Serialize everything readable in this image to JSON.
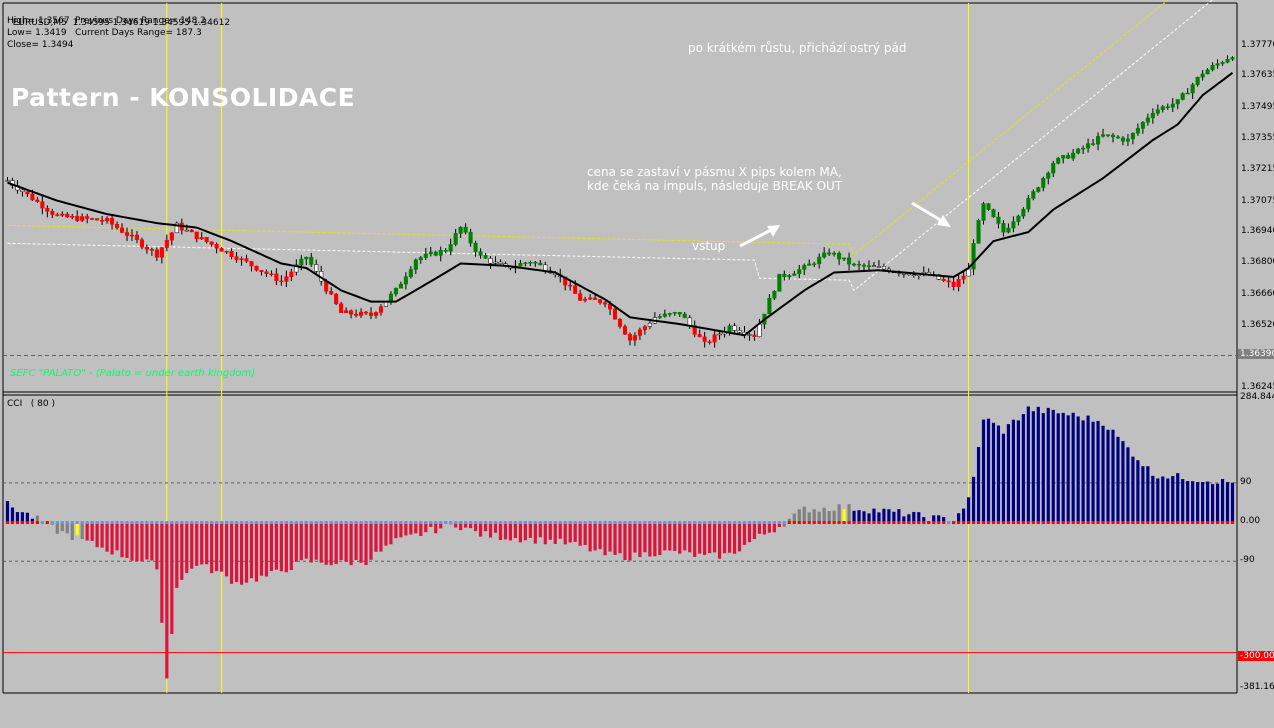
{
  "window": {
    "symbol": "EURUSD,M5",
    "ohlc": "1.34595 1.34619 1.34595 1.34612",
    "high_line": "High= 1.3567",
    "low_line": "Low= 1.3419",
    "close_line": "Close= 1.3494",
    "prev_range": "Previous Days Range= 148.2",
    "curr_range": "Current Days Range= 187.3"
  },
  "annotations": {
    "pattern_title": "Pattern - KONSOLIDACE",
    "consolidation_note": "cena se zastaví v pásmu X pips kolem MA,\nkde čeká na impuls, následuje BREAK OUT",
    "drop_note": "po krátkém růstu, přichází ostrý pád",
    "entry_label": "vstup",
    "credit": "SEFC \"PALATO\" - (Palato = under earth kingdom)"
  },
  "cci_panel": {
    "label": "CCI   ( 80 )",
    "levels": [
      90,
      0,
      -90,
      -300
    ],
    "tick_labels": [
      "284.844",
      "90",
      "0.00",
      "-90",
      "-381.169"
    ],
    "tag_300": "-300.00"
  },
  "colors": {
    "background": "#c0c0c0",
    "bull": "#008000",
    "bear": "#ff0000",
    "neutral": "#ffffff",
    "ma": "#000000",
    "cci_pos": "#000080",
    "cci_neg": "#dc143c",
    "cci_flat": "#808080",
    "signal": "#ffff00",
    "vline": "#ffff00"
  },
  "chart_data": {
    "type": "candlestick",
    "symbol": "EURUSD",
    "timeframe": "M5",
    "ylim": [
      1.36245,
      1.3793
    ],
    "y_ticks": [
      1.3777,
      1.37635,
      1.37495,
      1.37355,
      1.37215,
      1.37075,
      1.3694,
      1.368,
      1.3666,
      1.3652,
      1.3638,
      1.36245
    ],
    "y_tick_labels": [
      "1.37770",
      "1.37635",
      "1.37495",
      "1.37355",
      "1.37215",
      "1.37075",
      "1.36940",
      "1.36800",
      "1.36660",
      "1.36520",
      "1.36380",
      "1.36245"
    ],
    "current_price_line": 1.3639,
    "vertical_marker_bars": [
      32,
      43,
      193
    ],
    "close_path": [
      [
        0,
        1.3717
      ],
      [
        10,
        1.3701
      ],
      [
        20,
        1.3699
      ],
      [
        30,
        1.3684
      ],
      [
        34,
        1.3697
      ],
      [
        38,
        1.3692
      ],
      [
        45,
        1.3684
      ],
      [
        55,
        1.3672
      ],
      [
        60,
        1.3683
      ],
      [
        67,
        1.3658
      ],
      [
        73,
        1.3657
      ],
      [
        78,
        1.3668
      ],
      [
        82,
        1.3682
      ],
      [
        88,
        1.3686
      ],
      [
        91,
        1.3696
      ],
      [
        95,
        1.3683
      ],
      [
        100,
        1.3678
      ],
      [
        105,
        1.3681
      ],
      [
        110,
        1.3676
      ],
      [
        115,
        1.3664
      ],
      [
        120,
        1.3663
      ],
      [
        125,
        1.3646
      ],
      [
        130,
        1.3656
      ],
      [
        135,
        1.3658
      ],
      [
        140,
        1.3644
      ],
      [
        145,
        1.3652
      ],
      [
        150,
        1.3648
      ],
      [
        155,
        1.3674
      ],
      [
        160,
        1.3678
      ],
      [
        165,
        1.3685
      ],
      [
        170,
        1.3679
      ],
      [
        175,
        1.3678
      ],
      [
        180,
        1.3676
      ],
      [
        185,
        1.3675
      ],
      [
        190,
        1.367
      ],
      [
        193,
        1.3677
      ],
      [
        194,
        1.369
      ],
      [
        196,
        1.3706
      ],
      [
        200,
        1.3694
      ],
      [
        205,
        1.3708
      ],
      [
        210,
        1.3725
      ],
      [
        215,
        1.373
      ],
      [
        220,
        1.3737
      ],
      [
        225,
        1.3735
      ],
      [
        230,
        1.3748
      ],
      [
        235,
        1.3752
      ],
      [
        240,
        1.3765
      ],
      [
        246,
        1.3773
      ]
    ],
    "ma_path": [
      [
        0,
        1.3716
      ],
      [
        10,
        1.3708
      ],
      [
        20,
        1.3702
      ],
      [
        30,
        1.3698
      ],
      [
        38,
        1.3696
      ],
      [
        45,
        1.369
      ],
      [
        55,
        1.368
      ],
      [
        60,
        1.3678
      ],
      [
        67,
        1.3668
      ],
      [
        73,
        1.3663
      ],
      [
        78,
        1.3663
      ],
      [
        85,
        1.3672
      ],
      [
        91,
        1.368
      ],
      [
        100,
        1.3679
      ],
      [
        110,
        1.3676
      ],
      [
        115,
        1.367
      ],
      [
        120,
        1.3664
      ],
      [
        125,
        1.3656
      ],
      [
        135,
        1.3653
      ],
      [
        148,
        1.3648
      ],
      [
        152,
        1.3655
      ],
      [
        160,
        1.3668
      ],
      [
        166,
        1.3676
      ],
      [
        175,
        1.3677
      ],
      [
        185,
        1.3675
      ],
      [
        190,
        1.3674
      ],
      [
        193,
        1.3678
      ],
      [
        198,
        1.369
      ],
      [
        205,
        1.3694
      ],
      [
        210,
        1.3704
      ],
      [
        220,
        1.3718
      ],
      [
        230,
        1.3735
      ],
      [
        235,
        1.3742
      ],
      [
        240,
        1.3755
      ],
      [
        246,
        1.3765
      ]
    ],
    "cci_period": 80,
    "cci_ylim": [
      -381.169,
      284.844
    ],
    "cci_path": [
      [
        0,
        40
      ],
      [
        6,
        6
      ],
      [
        10,
        -20
      ],
      [
        14,
        -38
      ],
      [
        18,
        -55
      ],
      [
        24,
        -80
      ],
      [
        30,
        -100
      ],
      [
        32,
        -360
      ],
      [
        34,
        -145
      ],
      [
        38,
        -95
      ],
      [
        43,
        -120
      ],
      [
        46,
        -140
      ],
      [
        52,
        -125
      ],
      [
        60,
        -90
      ],
      [
        66,
        -95
      ],
      [
        72,
        -90
      ],
      [
        78,
        -45
      ],
      [
        85,
        -20
      ],
      [
        90,
        -5
      ],
      [
        95,
        -28
      ],
      [
        100,
        -35
      ],
      [
        110,
        -45
      ],
      [
        115,
        -55
      ],
      [
        120,
        -75
      ],
      [
        125,
        -80
      ],
      [
        130,
        -70
      ],
      [
        135,
        -70
      ],
      [
        140,
        -80
      ],
      [
        145,
        -75
      ],
      [
        150,
        -40
      ],
      [
        155,
        -10
      ],
      [
        160,
        30
      ],
      [
        163,
        30
      ],
      [
        167,
        35
      ],
      [
        172,
        30
      ],
      [
        180,
        20
      ],
      [
        185,
        10
      ],
      [
        190,
        5
      ],
      [
        193,
        50
      ],
      [
        194,
        100
      ],
      [
        196,
        240
      ],
      [
        200,
        210
      ],
      [
        205,
        260
      ],
      [
        212,
        250
      ],
      [
        220,
        230
      ],
      [
        230,
        110
      ],
      [
        246,
        90
      ]
    ],
    "n_bars": 247
  }
}
